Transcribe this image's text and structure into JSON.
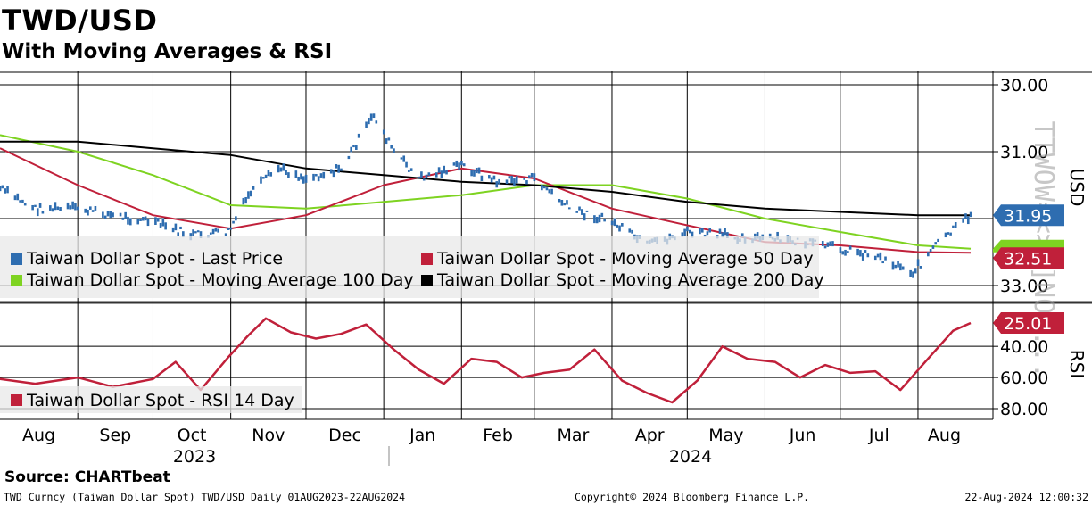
{
  "header": {
    "title": "TWD/USD",
    "subtitle": "With Moving Averages & RSI"
  },
  "footer": {
    "source": "Source: CHARTbeat",
    "ticker_info": "TWD Curncy (Taiwan Dollar Spot) TWD/USD  Daily 01AUG2023-22AUG2024",
    "copyright": "Copyright© 2024 Bloomberg Finance L.P.",
    "timestamp": "22-Aug-2024 12:00:32"
  },
  "watermark": "TTWOW=<>[]NOW...",
  "colors": {
    "price": "#2e6db0",
    "ma50": "#c0203a",
    "ma100": "#7ed321",
    "ma200": "#000000",
    "rsi": "#c0203a",
    "tag_price": "#2e6db0",
    "tag_ma": "#c0203a",
    "tag_ma100": "#7ed321"
  },
  "chart_data": [
    {
      "type": "line",
      "panel": "price",
      "y_axis_label": "USD",
      "y_inverted": true,
      "ylim": [
        30.0,
        33.0
      ],
      "y_ticks": [
        "30.00",
        "31.00",
        "33.00"
      ],
      "x_months": [
        "Aug",
        "Sep",
        "Oct",
        "Nov",
        "Dec",
        "Jan",
        "Feb",
        "Mar",
        "Apr",
        "May",
        "Jun",
        "Jul",
        "Aug"
      ],
      "x_years": [
        "2023",
        "2024"
      ],
      "grid": true,
      "legend_placement": "bottom-left",
      "last_value_tags": [
        {
          "label": "31.95",
          "series": "Last Price"
        },
        {
          "label": "32.51",
          "series": "Moving Average 50 Day"
        }
      ],
      "series": [
        {
          "name": "Taiwan Dollar Spot - Last Price",
          "style": "bars",
          "x": [
            "2023-08-01",
            "2023-08-15",
            "2023-09-01",
            "2023-09-15",
            "2023-10-01",
            "2023-10-16",
            "2023-10-31",
            "2023-11-09",
            "2023-11-20",
            "2023-12-01",
            "2023-12-15",
            "2023-12-28",
            "2024-01-05",
            "2024-01-15",
            "2024-02-01",
            "2024-02-15",
            "2024-03-01",
            "2024-03-15",
            "2024-04-01",
            "2024-04-15",
            "2024-05-01",
            "2024-05-15",
            "2024-06-01",
            "2024-06-15",
            "2024-07-01",
            "2024-07-15",
            "2024-07-30",
            "2024-08-08",
            "2024-08-22"
          ],
          "values": [
            31.55,
            31.85,
            31.85,
            31.95,
            32.05,
            32.25,
            32.2,
            31.6,
            31.25,
            31.4,
            31.25,
            30.45,
            31.0,
            31.4,
            31.2,
            31.45,
            31.4,
            31.85,
            32.05,
            32.4,
            32.2,
            32.25,
            32.3,
            32.35,
            32.45,
            32.55,
            32.8,
            32.4,
            31.95
          ]
        },
        {
          "name": "Taiwan Dollar Spot - Moving Average 50 Day",
          "style": "line",
          "x": [
            "2023-08-01",
            "2023-09-01",
            "2023-10-01",
            "2023-11-01",
            "2023-12-01",
            "2024-01-01",
            "2024-02-01",
            "2024-03-01",
            "2024-04-01",
            "2024-05-01",
            "2024-06-01",
            "2024-07-01",
            "2024-08-01",
            "2024-08-22"
          ],
          "values": [
            30.95,
            31.5,
            31.95,
            32.15,
            31.95,
            31.5,
            31.25,
            31.4,
            31.85,
            32.1,
            32.35,
            32.4,
            32.5,
            32.51
          ]
        },
        {
          "name": "Taiwan Dollar Spot - Moving Average 100 Day",
          "style": "line",
          "x": [
            "2023-08-01",
            "2023-09-01",
            "2023-10-01",
            "2023-11-01",
            "2023-12-01",
            "2024-01-01",
            "2024-02-01",
            "2024-03-01",
            "2024-04-01",
            "2024-05-01",
            "2024-06-01",
            "2024-07-01",
            "2024-08-01",
            "2024-08-22"
          ],
          "values": [
            30.75,
            31.0,
            31.35,
            31.8,
            31.85,
            31.75,
            31.65,
            31.5,
            31.5,
            31.7,
            32.0,
            32.2,
            32.4,
            32.45
          ]
        },
        {
          "name": "Taiwan Dollar Spot - Moving Average 200 Day",
          "style": "line",
          "x": [
            "2023-08-01",
            "2023-09-01",
            "2023-10-01",
            "2023-11-01",
            "2023-12-01",
            "2024-01-01",
            "2024-02-01",
            "2024-03-01",
            "2024-04-01",
            "2024-05-01",
            "2024-06-01",
            "2024-07-01",
            "2024-08-01",
            "2024-08-22"
          ],
          "values": [
            30.85,
            30.85,
            30.95,
            31.05,
            31.25,
            31.35,
            31.45,
            31.5,
            31.6,
            31.75,
            31.85,
            31.9,
            31.95,
            31.95
          ]
        }
      ]
    },
    {
      "type": "line",
      "panel": "rsi",
      "y_axis_label": "RSI",
      "y_inverted": true,
      "ylim": [
        20,
        85
      ],
      "y_ticks": [
        "40.00",
        "60.00",
        "80.00"
      ],
      "grid": true,
      "legend_placement": "bottom-left",
      "last_value_tags": [
        {
          "label": "25.01",
          "series": "RSI 14 Day"
        }
      ],
      "series": [
        {
          "name": "Taiwan Dollar Spot - RSI 14 Day",
          "x": [
            "2023-08-01",
            "2023-08-15",
            "2023-09-01",
            "2023-09-15",
            "2023-10-01",
            "2023-10-10",
            "2023-10-20",
            "2023-10-31",
            "2023-11-08",
            "2023-11-15",
            "2023-11-25",
            "2023-12-05",
            "2023-12-15",
            "2023-12-25",
            "2024-01-05",
            "2024-01-15",
            "2024-01-25",
            "2024-02-05",
            "2024-02-15",
            "2024-02-25",
            "2024-03-05",
            "2024-03-15",
            "2024-03-25",
            "2024-04-05",
            "2024-04-15",
            "2024-04-25",
            "2024-05-05",
            "2024-05-15",
            "2024-05-25",
            "2024-06-05",
            "2024-06-15",
            "2024-06-25",
            "2024-07-05",
            "2024-07-15",
            "2024-07-25",
            "2024-08-05",
            "2024-08-15",
            "2024-08-22"
          ],
          "values": [
            61,
            64,
            60,
            66,
            61,
            50,
            68,
            47,
            33,
            22,
            31,
            35,
            32,
            26,
            42,
            55,
            64,
            48,
            50,
            60,
            57,
            55,
            42,
            62,
            70,
            76,
            62,
            40,
            48,
            50,
            60,
            52,
            57,
            56,
            68,
            48,
            30,
            25.01
          ]
        }
      ]
    }
  ],
  "legend": {
    "price_panel": [
      "Taiwan Dollar Spot - Last Price",
      "Taiwan Dollar Spot - Moving Average 50 Day",
      "Taiwan Dollar Spot - Moving Average 100 Day",
      "Taiwan Dollar Spot - Moving Average 200 Day"
    ],
    "rsi_panel": [
      "Taiwan Dollar Spot - RSI 14 Day"
    ]
  }
}
